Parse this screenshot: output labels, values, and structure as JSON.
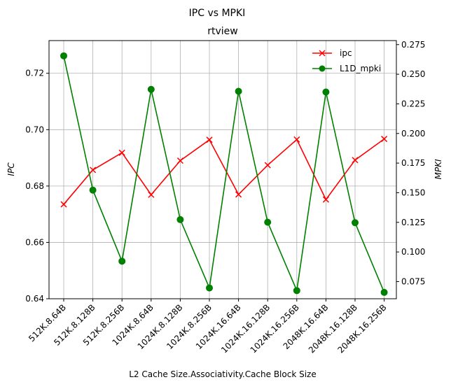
{
  "chart_data": {
    "type": "line",
    "suptitle": "IPC vs MPKI",
    "title": "rtview",
    "xlabel": "L2 Cache Size.Associativity.Cache Block Size",
    "ylabel_left": "IPC",
    "ylabel_right": "MPKI",
    "categories": [
      "512K.8.64B",
      "512K.8.128B",
      "512K.8.256B",
      "1024K.8.64B",
      "1024K.8.128B",
      "1024K.8.256B",
      "1024K.16.64B",
      "1024K.16.128B",
      "1024K.16.256B",
      "2048K.16.64B",
      "2048K.16.128B",
      "2048K.16.256B"
    ],
    "ylim_left": [
      0.64,
      0.7316
    ],
    "ylim_right": [
      0.0605,
      0.2784
    ],
    "yticks_left": [
      "0.64",
      "0.66",
      "0.68",
      "0.70",
      "0.72"
    ],
    "yticks_right": [
      "0.075",
      "0.100",
      "0.125",
      "0.150",
      "0.175",
      "0.200",
      "0.225",
      "0.250",
      "0.275"
    ],
    "grid": true,
    "legend_position": "top-right",
    "series": [
      {
        "name": "ipc",
        "axis": "left",
        "color": "#ff0000",
        "marker": "x",
        "values": [
          0.6735,
          0.6857,
          0.6918,
          0.6769,
          0.689,
          0.6964,
          0.677,
          0.6874,
          0.6965,
          0.6752,
          0.6892,
          0.6967
        ]
      },
      {
        "name": "L1D_mpki",
        "axis": "right",
        "color": "#008000",
        "marker": "circle",
        "values": [
          0.2655,
          0.1522,
          0.0922,
          0.2372,
          0.1273,
          0.0696,
          0.2356,
          0.1251,
          0.0674,
          0.235,
          0.1247,
          0.0659
        ]
      }
    ]
  }
}
